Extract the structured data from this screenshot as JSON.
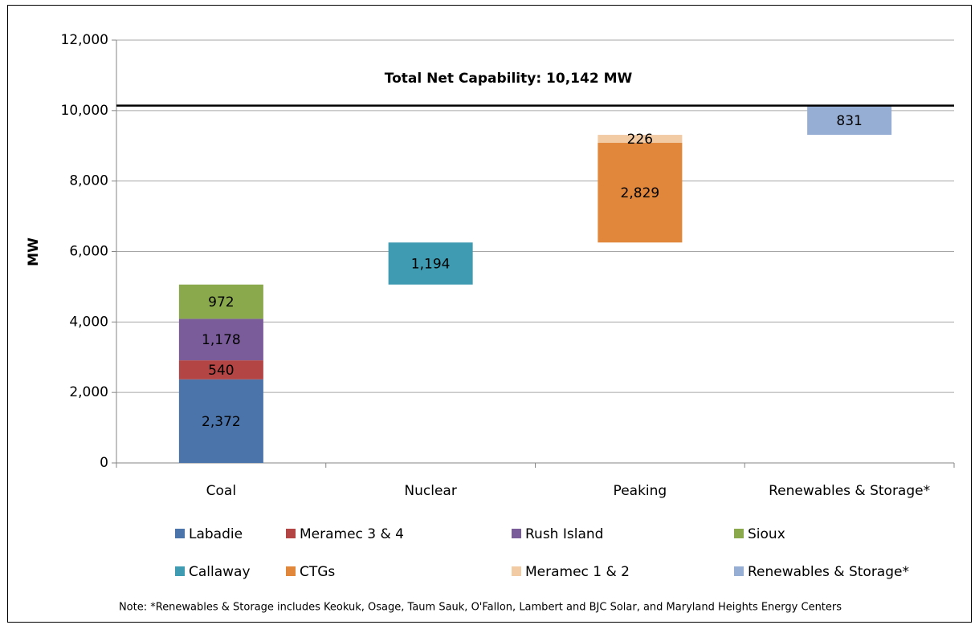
{
  "chart_data": {
    "type": "waterfall",
    "annotation": "Total Net Capability:  10,142 MW",
    "y_label": "MW",
    "note": "Note:  *Renewables & Storage includes Keokuk, Osage, Taum Sauk, O'Fallon, Lambert and BJC Solar, and Maryland Heights Energy Centers",
    "categories": [
      "Coal",
      "Nuclear",
      "Peaking",
      "Renewables & Storage*"
    ],
    "series": [
      {
        "name": "Labadie",
        "color": "#4a74aa",
        "values": [
          2372,
          null,
          null,
          null
        ],
        "value_labels": [
          "2,372",
          null,
          null,
          null
        ]
      },
      {
        "name": "Meramec 3 & 4",
        "color": "#b34545",
        "values": [
          540,
          null,
          null,
          null
        ],
        "value_labels": [
          "540",
          null,
          null,
          null
        ]
      },
      {
        "name": "Rush Island",
        "color": "#7b5c9b",
        "values": [
          1178,
          null,
          null,
          null
        ],
        "value_labels": [
          "1,178",
          null,
          null,
          null
        ]
      },
      {
        "name": "Sioux",
        "color": "#8aa94c",
        "values": [
          972,
          null,
          null,
          null
        ],
        "value_labels": [
          "972",
          null,
          null,
          null
        ]
      },
      {
        "name": "Callaway",
        "color": "#3f9bb1",
        "values": [
          null,
          1194,
          null,
          null
        ],
        "value_labels": [
          null,
          "1,194",
          null,
          null
        ]
      },
      {
        "name": "CTGs",
        "color": "#e0873c",
        "values": [
          null,
          null,
          2829,
          null
        ],
        "value_labels": [
          null,
          null,
          "2,829",
          null
        ]
      },
      {
        "name": "Meramec 1 & 2",
        "color": "#f2caa4",
        "values": [
          null,
          null,
          226,
          null
        ],
        "value_labels": [
          null,
          null,
          "226",
          null
        ]
      },
      {
        "name": "Renewables & Storage*",
        "color": "#97aed4",
        "values": [
          null,
          null,
          null,
          831
        ],
        "value_labels": [
          null,
          null,
          null,
          "831"
        ]
      }
    ],
    "ylim": [
      0,
      12000
    ],
    "yticks": [
      0,
      {
        "value": 2000,
        "label": "2,000"
      },
      {
        "value": 4000,
        "label": "4,000"
      },
      {
        "value": 6000,
        "label": "6,000"
      },
      {
        "value": 8000,
        "label": "8,000"
      },
      {
        "value": 10000,
        "label": "10,000"
      },
      {
        "value": 12000,
        "label": "12,000"
      }
    ],
    "grid": true
  }
}
